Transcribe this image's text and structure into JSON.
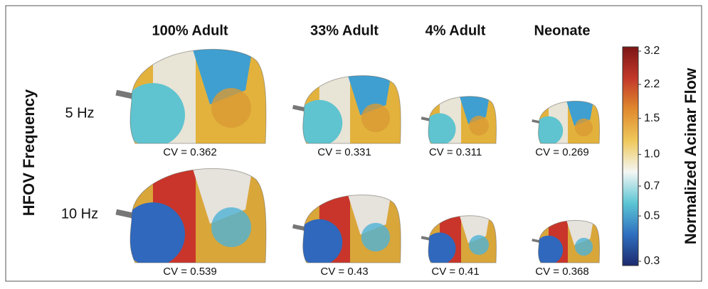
{
  "figure": {
    "row_axis_label": "HFOV Frequency",
    "columns": [
      "100% Adult",
      "33% Adult",
      "4% Adult",
      "Neonate"
    ],
    "rows": [
      {
        "label": "5 Hz",
        "cv": [
          0.362,
          0.331,
          0.311,
          0.269
        ]
      },
      {
        "label": "10 Hz",
        "cv": [
          0.539,
          0.43,
          0.41,
          0.368
        ]
      }
    ],
    "cv_label": "CV =",
    "colorbar": {
      "label": "Normalized Acinar Flow",
      "scale": "log",
      "lim": [
        0.3,
        3.2
      ],
      "ticks": [
        0.3,
        0.5,
        0.7,
        {
          "value": 1.0,
          "label": "1.0"
        },
        1.5,
        2.2,
        3.2
      ],
      "colors": [
        "#1d2a6e",
        "#2f6fc0",
        "#5cc6d4",
        "#f4f6f4",
        "#efc85a",
        "#e08a2e",
        "#c2382b",
        "#7c1515"
      ]
    }
  }
}
